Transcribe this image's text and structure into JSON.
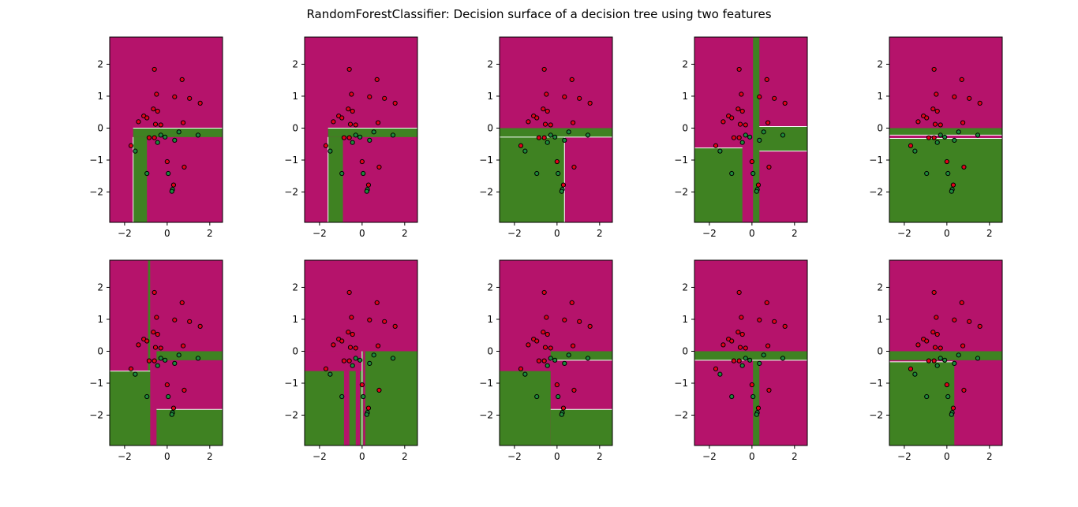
{
  "title": "RandomForestClassifier: Decision surface of a decision tree using two features",
  "colors": {
    "class0": "#b5136b",
    "class1": "#3f8222",
    "point0": "#e3001a",
    "point1": "#1e8a3c",
    "boundary": "#ffffff"
  },
  "chart_data": {
    "type": "scatter",
    "grid": false,
    "xlim": [
      -2.7,
      2.6
    ],
    "ylim": [
      -2.95,
      2.85
    ],
    "xticks": [
      -2,
      0,
      2
    ],
    "yticks": [
      -2,
      -1,
      0,
      1,
      2
    ],
    "xtick_labels": [
      "−2",
      "0",
      "2"
    ],
    "ytick_labels": [
      "−2",
      "−1",
      "0",
      "1",
      "2"
    ],
    "points": [
      {
        "x": -0.6,
        "y": 1.84,
        "c": 0
      },
      {
        "x": 0.7,
        "y": 1.52,
        "c": 0
      },
      {
        "x": -0.5,
        "y": 1.06,
        "c": 0
      },
      {
        "x": 0.35,
        "y": 0.98,
        "c": 0
      },
      {
        "x": 1.05,
        "y": 0.93,
        "c": 0
      },
      {
        "x": 1.55,
        "y": 0.78,
        "c": 0
      },
      {
        "x": -0.65,
        "y": 0.6,
        "c": 0
      },
      {
        "x": -0.45,
        "y": 0.53,
        "c": 0
      },
      {
        "x": -1.1,
        "y": 0.38,
        "c": 0
      },
      {
        "x": -0.95,
        "y": 0.32,
        "c": 0
      },
      {
        "x": -1.35,
        "y": 0.2,
        "c": 0
      },
      {
        "x": 0.75,
        "y": 0.17,
        "c": 0
      },
      {
        "x": -0.55,
        "y": 0.12,
        "c": 0
      },
      {
        "x": -0.3,
        "y": 0.1,
        "c": 0
      },
      {
        "x": -0.85,
        "y": -0.3,
        "c": 0
      },
      {
        "x": -0.6,
        "y": -0.3,
        "c": 0
      },
      {
        "x": -1.7,
        "y": -0.55,
        "c": 0
      },
      {
        "x": 0.0,
        "y": -1.05,
        "c": 0
      },
      {
        "x": 0.8,
        "y": -1.22,
        "c": 0
      },
      {
        "x": 0.3,
        "y": -1.78,
        "c": 0
      },
      {
        "x": 0.55,
        "y": -0.12,
        "c": 1
      },
      {
        "x": 1.45,
        "y": -0.22,
        "c": 1
      },
      {
        "x": -0.3,
        "y": -0.22,
        "c": 1
      },
      {
        "x": -0.1,
        "y": -0.28,
        "c": 1
      },
      {
        "x": 0.35,
        "y": -0.38,
        "c": 1
      },
      {
        "x": -0.45,
        "y": -0.45,
        "c": 1
      },
      {
        "x": -1.5,
        "y": -0.72,
        "c": 1
      },
      {
        "x": -0.95,
        "y": -1.42,
        "c": 1
      },
      {
        "x": 0.05,
        "y": -1.42,
        "c": 1
      },
      {
        "x": 0.25,
        "y": -1.92,
        "c": 1
      },
      {
        "x": 0.22,
        "y": -1.98,
        "c": 1
      }
    ],
    "panels": [
      {
        "rects": [
          [
            -1.6,
            2.6,
            -0.28,
            0
          ],
          [
            -1.6,
            -0.95,
            -2.95,
            -0.28
          ]
        ],
        "lines": [
          [
            -1.6,
            0,
            2.6,
            0
          ],
          [
            -1.6,
            -0.28,
            -1.6,
            -2.95
          ]
        ]
      },
      {
        "rects": [
          [
            -1.6,
            2.6,
            -0.28,
            0
          ],
          [
            -1.6,
            -0.9,
            -2.95,
            -0.28
          ]
        ],
        "lines": [
          [
            -1.6,
            0,
            2.6,
            0
          ],
          [
            -1.6,
            -0.28,
            -1.6,
            -2.95
          ]
        ]
      },
      {
        "rects": [
          [
            -2.7,
            2.6,
            -0.28,
            0
          ],
          [
            -2.7,
            0.35,
            -2.95,
            -0.28
          ]
        ],
        "lines": [
          [
            -2.7,
            -0.28,
            2.6,
            -0.28
          ],
          [
            0.35,
            -0.28,
            0.35,
            -2.95
          ]
        ]
      },
      {
        "rects": [
          [
            -2.7,
            -0.45,
            -2.95,
            -0.62
          ],
          [
            0.05,
            0.35,
            -2.95,
            2.85
          ],
          [
            0.35,
            2.6,
            -0.72,
            0.05
          ]
        ],
        "lines": [
          [
            -2.7,
            -0.62,
            -0.45,
            -0.62
          ],
          [
            0.35,
            0.05,
            2.6,
            0.05
          ],
          [
            0.35,
            -0.72,
            2.6,
            -0.72
          ]
        ]
      },
      {
        "rects": [
          [
            -2.7,
            2.6,
            -2.95,
            0
          ]
        ],
        "lines": [
          [
            -2.7,
            -0.22,
            2.6,
            -0.22
          ],
          [
            -2.7,
            -0.32,
            2.6,
            -0.32
          ]
        ],
        "fills": [
          [
            -2.7,
            2.6,
            -0.32,
            -0.22,
            "class0"
          ]
        ]
      },
      {
        "rects": [
          [
            -0.9,
            -0.8,
            -2.95,
            2.85
          ],
          [
            -2.7,
            -0.8,
            -2.95,
            -0.62
          ],
          [
            -0.5,
            2.6,
            -0.28,
            0
          ],
          [
            -0.5,
            2.6,
            -2.95,
            -1.82
          ]
        ],
        "lines": [
          [
            -2.7,
            -0.62,
            -0.8,
            -0.62
          ],
          [
            -0.5,
            -1.82,
            2.6,
            -1.82
          ]
        ]
      },
      {
        "rects": [
          [
            -2.7,
            2.6,
            -2.95,
            0
          ]
        ],
        "fills": [
          [
            -2.7,
            0.0,
            -0.62,
            0,
            "class0"
          ],
          [
            -0.85,
            -0.6,
            -2.95,
            -0.62,
            "class0"
          ],
          [
            -0.3,
            -0.1,
            -2.95,
            -0.62,
            "class0"
          ],
          [
            0.05,
            0.15,
            -2.95,
            0,
            "class0"
          ]
        ],
        "lines": [
          [
            0.0,
            0,
            0.0,
            -2.95
          ]
        ]
      },
      {
        "rects": [
          [
            -0.3,
            2.6,
            -0.28,
            0
          ],
          [
            -2.7,
            -0.3,
            -2.95,
            -0.62
          ],
          [
            -0.3,
            2.6,
            -2.95,
            -1.82
          ]
        ],
        "lines": [
          [
            -0.3,
            -0.28,
            2.6,
            -0.28
          ],
          [
            -0.3,
            -1.82,
            2.6,
            -1.82
          ]
        ]
      },
      {
        "rects": [
          [
            -2.7,
            2.6,
            -0.28,
            0
          ],
          [
            0.05,
            0.35,
            -2.95,
            -0.28
          ]
        ],
        "lines": [
          [
            -2.7,
            -0.28,
            2.6,
            -0.28
          ]
        ]
      },
      {
        "rects": [
          [
            -2.7,
            2.6,
            -0.28,
            0
          ],
          [
            -2.7,
            0.35,
            -2.95,
            -0.28
          ]
        ],
        "lines": [
          [
            -2.7,
            -0.33,
            0.35,
            -0.33
          ]
        ],
        "fills": [
          [
            -2.7,
            0.35,
            -0.33,
            -0.28,
            "class0"
          ]
        ]
      }
    ]
  }
}
